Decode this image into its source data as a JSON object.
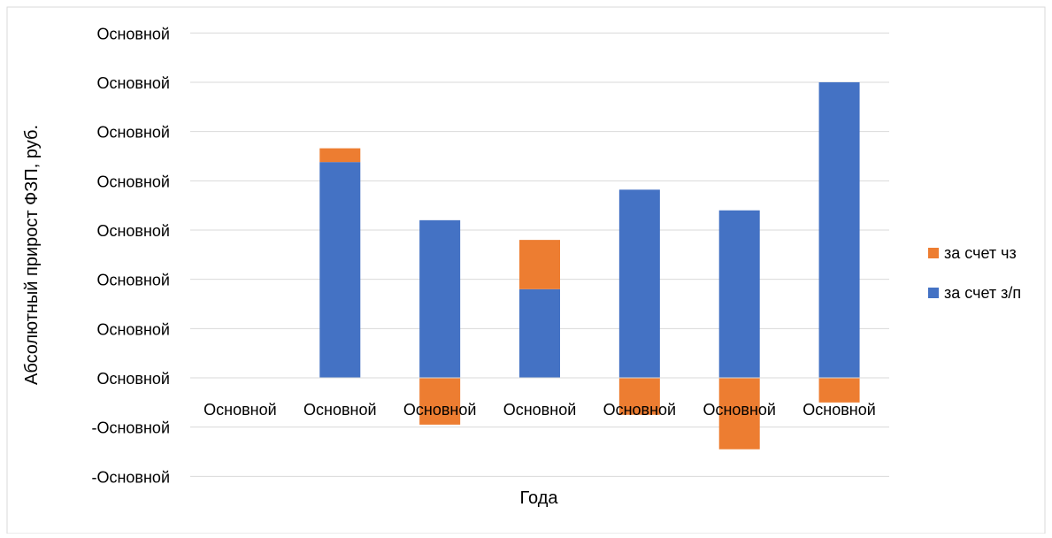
{
  "chart_data": {
    "type": "bar",
    "stacked": true,
    "xlabel": "Года",
    "ylabel": "Абсолютный прирост ФЗП, руб.",
    "categories": [
      "Основной",
      "Основной",
      "Основной",
      "Основной",
      "Основной",
      "Основной",
      "Основной"
    ],
    "y_tick_labels": [
      "-Основной",
      "-Основной",
      "Основной",
      "Основной",
      "Основной",
      "Основной",
      "Основной",
      "Основной",
      "Основной",
      "Основной"
    ],
    "y_tick_values": [
      -2,
      -1,
      0,
      1,
      2,
      3,
      4,
      5,
      6,
      7
    ],
    "ylim": [
      -2,
      7
    ],
    "grid": true,
    "legend_position": "right",
    "series": [
      {
        "name": "за счет з/п",
        "color": "#4472C4",
        "values": [
          0,
          4.38,
          3.2,
          1.8,
          3.82,
          3.4,
          6.0
        ]
      },
      {
        "name": "за счет чз",
        "color": "#ED7D31",
        "values": [
          0,
          0.28,
          -0.95,
          1.0,
          -0.75,
          -1.45,
          -0.5
        ]
      }
    ],
    "legend_order": [
      "за счет чз",
      "за счет з/п"
    ]
  }
}
